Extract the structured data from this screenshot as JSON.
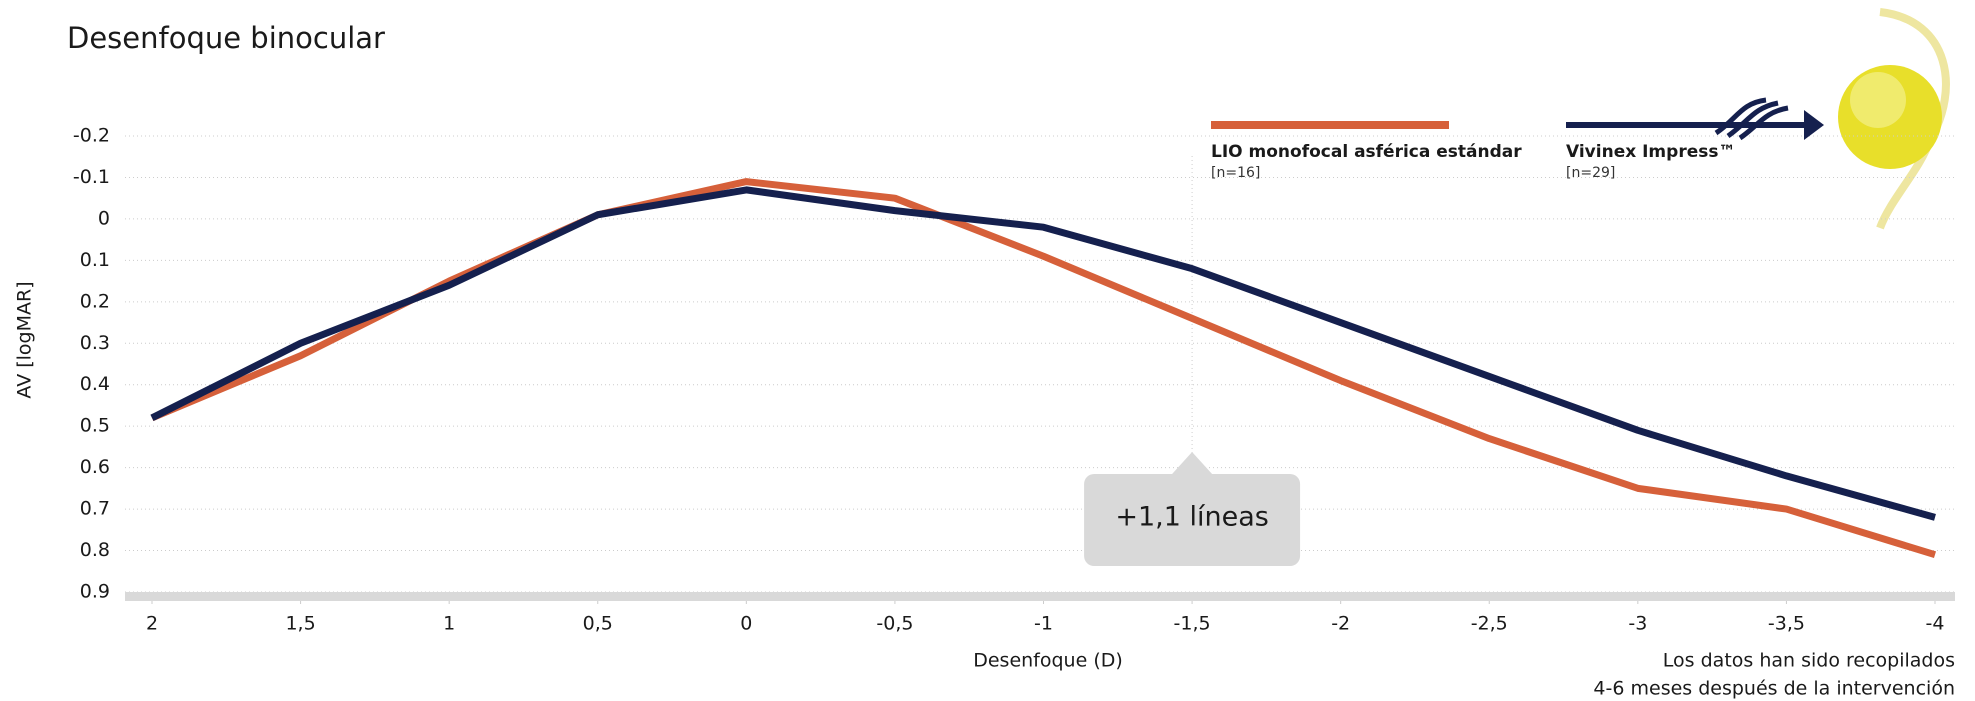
{
  "chart_data": {
    "type": "line",
    "title": "Desenfoque binocular",
    "x_label": "Desenfoque (D)",
    "y_label": "AV [logMAR]",
    "note": [
      "Los datos han sido recopilados",
      "4-6 meses después de la intervención"
    ],
    "x": [
      2,
      1.5,
      1,
      0.5,
      0,
      -0.5,
      -1,
      -1.5,
      -2,
      -2.5,
      -3,
      -3.5,
      -4
    ],
    "xlim": [
      2,
      -4
    ],
    "xticks": [
      2,
      {
        "value": 1.5,
        "label": "1,5"
      },
      1,
      {
        "value": 0.5,
        "label": "0,5"
      },
      0,
      {
        "value": -0.5,
        "label": "-0,5"
      },
      -1,
      {
        "value": -1.5,
        "label": "-1,5"
      },
      -2,
      {
        "value": -2.5,
        "label": "-2,5"
      },
      -3,
      {
        "value": -3.5,
        "label": "-3,5"
      },
      -4
    ],
    "ylim": [
      -0.2,
      0.9
    ],
    "y_reversed": true,
    "yticks": [
      -0.2,
      -0.1,
      0,
      0.1,
      0.2,
      0.3,
      0.4,
      0.5,
      0.6,
      0.7,
      0.8,
      0.9
    ],
    "grid": true,
    "series": [
      {
        "name": "LIO monofocal asférica estándar",
        "n_label": "[n=16]",
        "color": "#d6603a",
        "values": [
          0.48,
          0.33,
          0.15,
          -0.01,
          -0.09,
          -0.05,
          0.09,
          0.24,
          0.39,
          0.53,
          0.65,
          0.7,
          0.81
        ]
      },
      {
        "name": "Vivinex Impress™",
        "n_label": "[n=29]",
        "color": "#15204e",
        "values": [
          0.48,
          0.3,
          0.16,
          -0.01,
          -0.07,
          -0.02,
          0.02,
          0.12,
          0.25,
          0.38,
          0.51,
          0.62,
          0.72
        ]
      }
    ],
    "annotation": {
      "text": "+1,1 líneas",
      "x": -1.5
    }
  }
}
